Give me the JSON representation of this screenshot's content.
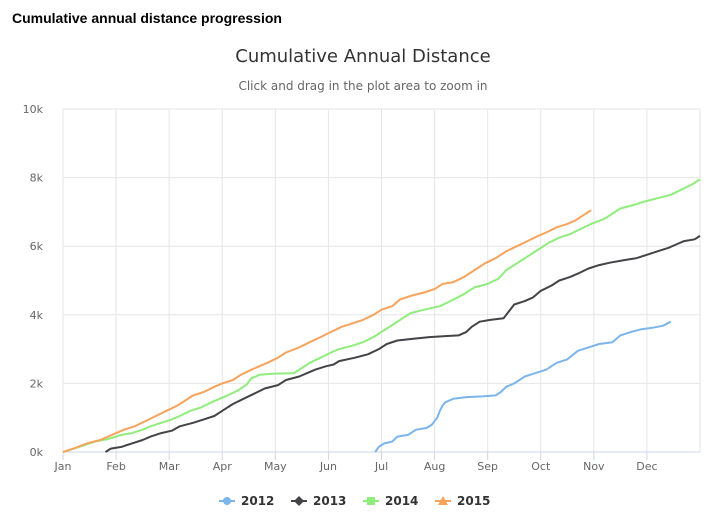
{
  "page": {
    "heading": "Cumulative annual distance progression"
  },
  "chart_data": {
    "type": "line",
    "title": "Cumulative Annual Distance",
    "subtitle": "Click and drag in the plot area to zoom in",
    "xlabel": "",
    "ylabel": "",
    "x_categories": [
      "Jan",
      "Feb",
      "Mar",
      "Apr",
      "May",
      "Jun",
      "Jul",
      "Aug",
      "Sep",
      "Oct",
      "Nov",
      "Dec"
    ],
    "y_ticks": [
      "0k",
      "2k",
      "4k",
      "6k",
      "8k",
      "10k"
    ],
    "ylim": [
      0,
      10000
    ],
    "xlim": [
      0,
      12
    ],
    "x_unit": "month (0 = Jan 1)",
    "grid": true,
    "legend_position": "bottom",
    "series": [
      {
        "name": "2012",
        "color": "#7cb5ec",
        "marker": "circle",
        "points": [
          [
            5.88,
            0
          ],
          [
            5.95,
            150
          ],
          [
            6.05,
            250
          ],
          [
            6.2,
            300
          ],
          [
            6.3,
            450
          ],
          [
            6.5,
            500
          ],
          [
            6.65,
            650
          ],
          [
            6.85,
            700
          ],
          [
            6.95,
            800
          ],
          [
            7.05,
            1000
          ],
          [
            7.1,
            1200
          ],
          [
            7.15,
            1350
          ],
          [
            7.2,
            1450
          ],
          [
            7.35,
            1550
          ],
          [
            7.6,
            1600
          ],
          [
            7.9,
            1620
          ],
          [
            8.15,
            1650
          ],
          [
            8.25,
            1750
          ],
          [
            8.35,
            1900
          ],
          [
            8.5,
            2000
          ],
          [
            8.7,
            2200
          ],
          [
            8.9,
            2300
          ],
          [
            9.1,
            2400
          ],
          [
            9.3,
            2600
          ],
          [
            9.5,
            2700
          ],
          [
            9.7,
            2950
          ],
          [
            9.9,
            3050
          ],
          [
            10.1,
            3150
          ],
          [
            10.35,
            3200
          ],
          [
            10.5,
            3400
          ],
          [
            10.7,
            3500
          ],
          [
            10.9,
            3580
          ],
          [
            11.1,
            3620
          ],
          [
            11.3,
            3680
          ],
          [
            11.45,
            3800
          ]
        ]
      },
      {
        "name": "2013",
        "color": "#434348",
        "marker": "diamond",
        "points": [
          [
            0.8,
            0
          ],
          [
            0.9,
            100
          ],
          [
            1.1,
            150
          ],
          [
            1.3,
            250
          ],
          [
            1.5,
            350
          ],
          [
            1.65,
            450
          ],
          [
            1.85,
            550
          ],
          [
            2.05,
            620
          ],
          [
            2.2,
            750
          ],
          [
            2.45,
            850
          ],
          [
            2.65,
            950
          ],
          [
            2.85,
            1050
          ],
          [
            3.0,
            1200
          ],
          [
            3.2,
            1400
          ],
          [
            3.4,
            1550
          ],
          [
            3.6,
            1700
          ],
          [
            3.8,
            1850
          ],
          [
            4.05,
            1950
          ],
          [
            4.2,
            2100
          ],
          [
            4.45,
            2200
          ],
          [
            4.6,
            2300
          ],
          [
            4.75,
            2400
          ],
          [
            4.95,
            2500
          ],
          [
            5.1,
            2550
          ],
          [
            5.2,
            2650
          ],
          [
            5.5,
            2750
          ],
          [
            5.75,
            2850
          ],
          [
            5.95,
            3000
          ],
          [
            6.1,
            3150
          ],
          [
            6.3,
            3250
          ],
          [
            6.6,
            3300
          ],
          [
            6.9,
            3350
          ],
          [
            7.2,
            3380
          ],
          [
            7.45,
            3400
          ],
          [
            7.6,
            3500
          ],
          [
            7.7,
            3650
          ],
          [
            7.85,
            3800
          ],
          [
            8.05,
            3850
          ],
          [
            8.3,
            3900
          ],
          [
            8.4,
            4100
          ],
          [
            8.5,
            4300
          ],
          [
            8.7,
            4400
          ],
          [
            8.85,
            4500
          ],
          [
            9.0,
            4700
          ],
          [
            9.2,
            4850
          ],
          [
            9.35,
            5000
          ],
          [
            9.55,
            5100
          ],
          [
            9.7,
            5200
          ],
          [
            9.9,
            5350
          ],
          [
            10.1,
            5450
          ],
          [
            10.3,
            5520
          ],
          [
            10.6,
            5600
          ],
          [
            10.8,
            5650
          ],
          [
            11.0,
            5750
          ],
          [
            11.2,
            5850
          ],
          [
            11.4,
            5950
          ],
          [
            11.55,
            6050
          ],
          [
            11.7,
            6150
          ],
          [
            11.9,
            6200
          ],
          [
            12.0,
            6300
          ]
        ]
      },
      {
        "name": "2014",
        "color": "#90ed7d",
        "marker": "square",
        "points": [
          [
            0,
            0
          ],
          [
            0.3,
            150
          ],
          [
            0.6,
            300
          ],
          [
            0.85,
            380
          ],
          [
            1.1,
            500
          ],
          [
            1.3,
            550
          ],
          [
            1.5,
            650
          ],
          [
            1.65,
            750
          ],
          [
            1.85,
            850
          ],
          [
            2.05,
            950
          ],
          [
            2.2,
            1050
          ],
          [
            2.4,
            1200
          ],
          [
            2.6,
            1300
          ],
          [
            2.8,
            1450
          ],
          [
            2.95,
            1550
          ],
          [
            3.1,
            1650
          ],
          [
            3.3,
            1800
          ],
          [
            3.45,
            1950
          ],
          [
            3.55,
            2150
          ],
          [
            3.7,
            2250
          ],
          [
            3.95,
            2280
          ],
          [
            4.35,
            2300
          ],
          [
            4.5,
            2450
          ],
          [
            4.65,
            2600
          ],
          [
            4.85,
            2750
          ],
          [
            5.05,
            2900
          ],
          [
            5.2,
            3000
          ],
          [
            5.45,
            3100
          ],
          [
            5.65,
            3200
          ],
          [
            5.85,
            3350
          ],
          [
            6.0,
            3500
          ],
          [
            6.2,
            3700
          ],
          [
            6.4,
            3900
          ],
          [
            6.55,
            4050
          ],
          [
            6.8,
            4150
          ],
          [
            7.1,
            4250
          ],
          [
            7.3,
            4400
          ],
          [
            7.55,
            4600
          ],
          [
            7.75,
            4800
          ],
          [
            8.0,
            4900
          ],
          [
            8.2,
            5050
          ],
          [
            8.35,
            5300
          ],
          [
            8.55,
            5500
          ],
          [
            8.75,
            5700
          ],
          [
            8.95,
            5900
          ],
          [
            9.15,
            6100
          ],
          [
            9.35,
            6250
          ],
          [
            9.55,
            6350
          ],
          [
            9.75,
            6500
          ],
          [
            9.95,
            6650
          ],
          [
            10.2,
            6800
          ],
          [
            10.35,
            6950
          ],
          [
            10.5,
            7100
          ],
          [
            10.75,
            7200
          ],
          [
            10.95,
            7300
          ],
          [
            11.2,
            7400
          ],
          [
            11.45,
            7500
          ],
          [
            11.65,
            7650
          ],
          [
            11.85,
            7800
          ],
          [
            12.0,
            7950
          ]
        ]
      },
      {
        "name": "2015",
        "color": "#f7a35c",
        "marker": "triangle",
        "points": [
          [
            0,
            0
          ],
          [
            0.2,
            100
          ],
          [
            0.45,
            250
          ],
          [
            0.7,
            350
          ],
          [
            0.85,
            450
          ],
          [
            1.0,
            550
          ],
          [
            1.15,
            650
          ],
          [
            1.35,
            750
          ],
          [
            1.55,
            900
          ],
          [
            1.75,
            1050
          ],
          [
            1.95,
            1200
          ],
          [
            2.15,
            1350
          ],
          [
            2.3,
            1500
          ],
          [
            2.45,
            1650
          ],
          [
            2.65,
            1750
          ],
          [
            2.85,
            1900
          ],
          [
            3.0,
            2000
          ],
          [
            3.2,
            2100
          ],
          [
            3.35,
            2250
          ],
          [
            3.55,
            2400
          ],
          [
            3.7,
            2500
          ],
          [
            3.85,
            2600
          ],
          [
            4.05,
            2750
          ],
          [
            4.2,
            2900
          ],
          [
            4.45,
            3050
          ],
          [
            4.65,
            3200
          ],
          [
            4.85,
            3350
          ],
          [
            5.05,
            3500
          ],
          [
            5.25,
            3650
          ],
          [
            5.45,
            3750
          ],
          [
            5.65,
            3850
          ],
          [
            5.85,
            4000
          ],
          [
            6.0,
            4150
          ],
          [
            6.2,
            4250
          ],
          [
            6.35,
            4450
          ],
          [
            6.55,
            4550
          ],
          [
            6.8,
            4650
          ],
          [
            7.0,
            4750
          ],
          [
            7.15,
            4900
          ],
          [
            7.35,
            4950
          ],
          [
            7.55,
            5100
          ],
          [
            7.75,
            5300
          ],
          [
            7.95,
            5500
          ],
          [
            8.15,
            5650
          ],
          [
            8.35,
            5850
          ],
          [
            8.55,
            6000
          ],
          [
            8.75,
            6150
          ],
          [
            8.95,
            6300
          ],
          [
            9.1,
            6400
          ],
          [
            9.3,
            6550
          ],
          [
            9.5,
            6650
          ],
          [
            9.65,
            6750
          ],
          [
            9.8,
            6900
          ],
          [
            9.95,
            7050
          ]
        ]
      }
    ]
  }
}
